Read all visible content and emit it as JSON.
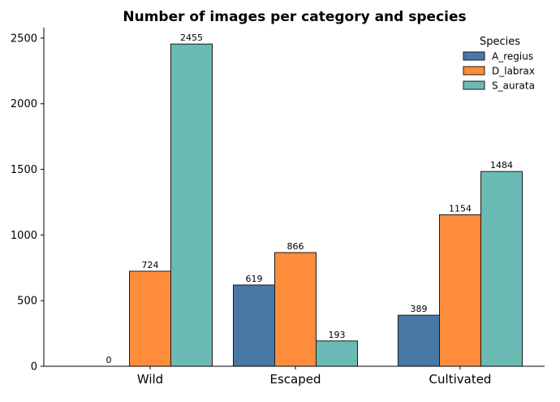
{
  "chart_data": {
    "type": "bar",
    "title": "Number of images per category and species",
    "xlabel": "",
    "ylabel": "",
    "categories": [
      "Wild",
      "Escaped",
      "Cultivated"
    ],
    "series": [
      {
        "name": "A_regius",
        "values": [
          0,
          619,
          389
        ],
        "color": "#4878a6"
      },
      {
        "name": "D_labrax",
        "values": [
          724,
          866,
          1154
        ],
        "color": "#ff8c3a"
      },
      {
        "name": "S_aurata",
        "values": [
          2455,
          193,
          1484
        ],
        "color": "#6bbab4"
      }
    ],
    "ylim": [
      0,
      2580
    ],
    "yticks": [
      0,
      500,
      1000,
      1500,
      2000,
      2500
    ],
    "data_labels": [
      [
        "0",
        "619",
        "389"
      ],
      [
        "724",
        "866",
        "1154"
      ],
      [
        "2455",
        "193",
        "1484"
      ]
    ],
    "legend": {
      "title": "Species",
      "placement": "top-right"
    },
    "grid": false
  }
}
